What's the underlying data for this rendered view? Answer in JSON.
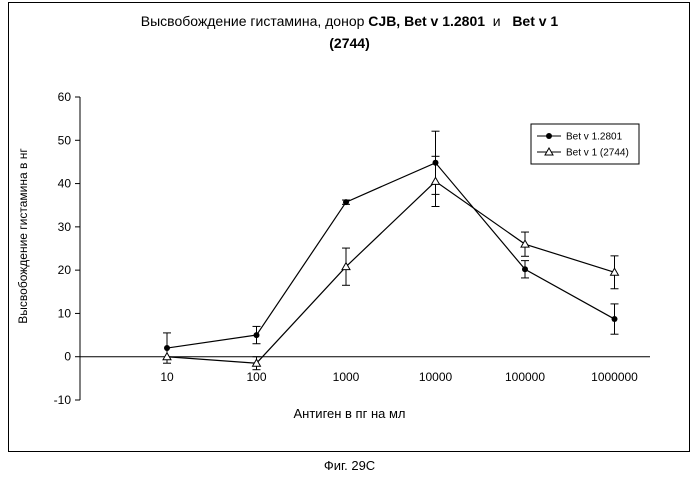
{
  "chart_data": {
    "type": "line",
    "title_plain": "Высвобождение гистамина, донор ",
    "title_bold_1": "CJB, Bet v 1.2801",
    "title_mid": "  и   ",
    "title_bold_2": "Bet v 1",
    "title_line2": "(2744)",
    "xlabel": "Антиген в пг на мл",
    "ylabel": "Высвобождение гистамина в нг",
    "categories": [
      "10",
      "100",
      "1000",
      "10000",
      "100000",
      "1000000"
    ],
    "y_ticks": [
      "-10",
      "0",
      "10",
      "20",
      "30",
      "40",
      "50",
      "60"
    ],
    "ylim": [
      -10,
      60
    ],
    "legend_position": "top-right",
    "series": [
      {
        "name": "Bet v 1.2801",
        "marker": "filled-circle",
        "values": [
          2,
          5,
          35.7,
          44.8,
          20.2,
          8.7
        ],
        "errors": [
          3.5,
          2,
          0.5,
          7.3,
          2,
          3.5
        ]
      },
      {
        "name": "Bet v 1 (2744)",
        "marker": "open-triangle",
        "values": [
          0,
          -1.5,
          20.8,
          40.5,
          26,
          19.5
        ],
        "errors": [
          0,
          1.5,
          4.3,
          5.8,
          2.8,
          3.8
        ]
      }
    ]
  },
  "caption": "Фиг. 29С"
}
